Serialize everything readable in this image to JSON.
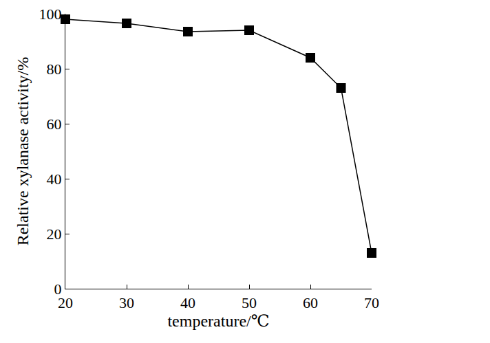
{
  "chart_data": {
    "type": "line",
    "x_label": "temperature/℃",
    "y_label": "Relative xylanase activity/%",
    "x": [
      20,
      30,
      40,
      50,
      60,
      65,
      70
    ],
    "values": [
      98,
      96.5,
      93.5,
      94,
      84,
      73,
      13
    ],
    "color": "#000000",
    "marker": "square",
    "line_style": "solid",
    "xlim": [
      20,
      70
    ],
    "xticks": [
      20,
      30,
      40,
      50,
      60,
      70
    ],
    "ylim": [
      0,
      100
    ],
    "yticks": [
      0,
      20,
      40,
      60,
      80,
      100
    ],
    "grid": false
  }
}
